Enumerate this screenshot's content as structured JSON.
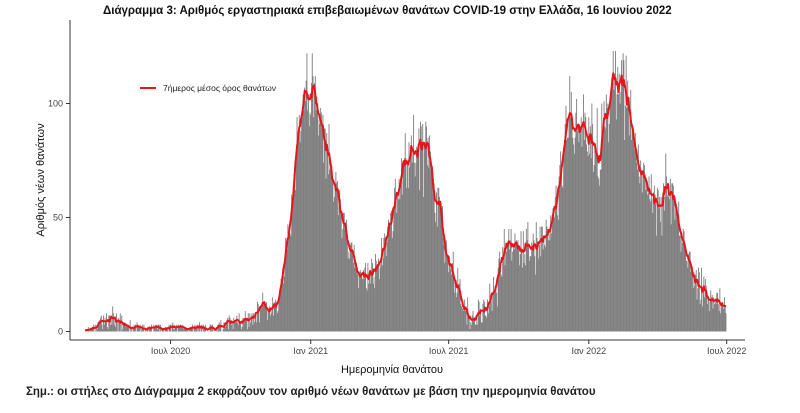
{
  "chart_data": {
    "type": "bar",
    "title": "Διάγραμμα 3: Αριθμός εργαστηριακά επιβεβαιωμένων θανάτων COVID-19 στην Ελλάδα, 16 Ιουνίου 2022",
    "xlabel": "Ημερομηνία θανάτου",
    "ylabel": "Αριθμός νέων θανάτων",
    "ylim": [
      0,
      135
    ],
    "yticks": [
      0,
      50,
      100
    ],
    "xlim": [
      "2020-02-20",
      "2022-07-25"
    ],
    "xticks": [
      {
        "date": "2020-07-01",
        "label": "Ιουλ 2020"
      },
      {
        "date": "2021-01-01",
        "label": "Ιαν 2021"
      },
      {
        "date": "2021-07-01",
        "label": "Ιουλ 2021"
      },
      {
        "date": "2022-01-01",
        "label": "Ιαν 2022"
      },
      {
        "date": "2022-07-01",
        "label": "Ιουλ 2022"
      }
    ],
    "grid": false,
    "legend_position": "top-left",
    "colors": {
      "bars": "#7f7f7f",
      "line": "#e8141c"
    },
    "series": [
      {
        "name": "daily_deaths",
        "kind": "bar",
        "start_date": "2020-03-11",
        "end_date": "2022-06-14",
        "daily_values": [
          0,
          1,
          0,
          0,
          2,
          1,
          0,
          1,
          1,
          1,
          2,
          3,
          0,
          3,
          0,
          2,
          1,
          3,
          3,
          5,
          6,
          7,
          3,
          1,
          7,
          3,
          6,
          4,
          8,
          2,
          1,
          7,
          7,
          3,
          7,
          3,
          11,
          8,
          3,
          6,
          2,
          8,
          5,
          0,
          6,
          5,
          8,
          0,
          7,
          1,
          4,
          3,
          4,
          3,
          2,
          3,
          3,
          2,
          0,
          5,
          0,
          2,
          0,
          1,
          3,
          1,
          3,
          0,
          4,
          3,
          2,
          2,
          3,
          0,
          1,
          3,
          1,
          3,
          0,
          1,
          0,
          1,
          2,
          0,
          2,
          2,
          2,
          3,
          0,
          0,
          3,
          2,
          2,
          3,
          2,
          1,
          3,
          3,
          0,
          3,
          0,
          1,
          1,
          1,
          0,
          2,
          2,
          1,
          1,
          0,
          3,
          1,
          3,
          0,
          3,
          4,
          1,
          1,
          2,
          2,
          3,
          0,
          3,
          2,
          2,
          3,
          2,
          2,
          3,
          1,
          2,
          1,
          2,
          1,
          1,
          1,
          0,
          1,
          2,
          2,
          1,
          3,
          0,
          2,
          3,
          1,
          1,
          3,
          0,
          3,
          4,
          0,
          2,
          3,
          0,
          3,
          1,
          2,
          3,
          0,
          0,
          1,
          0,
          0,
          3,
          3,
          2,
          3,
          0,
          2,
          0,
          0,
          2,
          0,
          1,
          3,
          4,
          3,
          5,
          0,
          0,
          1,
          4,
          3,
          2,
          4,
          5,
          6,
          1,
          7,
          6,
          4,
          3,
          4,
          1,
          6,
          5,
          5,
          4,
          7,
          4,
          3,
          8,
          4,
          4,
          1,
          2,
          6,
          5,
          5,
          9,
          6,
          5,
          1,
          8,
          2,
          8,
          4,
          7,
          8,
          3,
          8,
          4,
          8,
          8,
          4,
          13,
          12,
          9,
          4,
          11,
          11,
          12,
          17,
          13,
          12,
          12,
          11,
          13,
          5,
          9,
          10,
          11,
          7,
          8,
          11,
          15,
          7,
          11,
          13,
          14,
          13,
          8,
          9,
          13,
          16,
          16,
          23,
          24,
          26,
          21,
          24,
          32,
          41,
          34,
          36,
          47,
          44,
          42,
          43,
          42,
          60,
          53,
          62,
          69,
          67,
          62,
          78,
          94,
          87,
          85,
          95,
          83,
          88,
          95,
          98,
          104,
          97,
          107,
          101,
          110,
          122,
          97,
          104,
          90,
          96,
          95,
          109,
          122,
          112,
          94,
          109,
          112,
          97,
          103,
          100,
          86,
          93,
          91,
          98,
          96,
          90,
          95,
          74,
          89,
          89,
          67,
          87,
          82,
          69,
          91,
          71,
          75,
          72,
          71,
          66,
          57,
          59,
          65,
          70,
          65,
          66,
          51,
          59,
          62,
          58,
          51,
          41,
          45,
          52,
          52,
          45,
          47,
          49,
          42,
          32,
          35,
          32,
          38,
          39,
          39,
          34,
          30,
          38,
          28,
          29,
          30,
          28,
          25,
          19,
          25,
          27,
          26,
          24,
          23,
          27,
          23,
          28,
          30,
          19,
          18,
          30,
          21,
          26,
          21,
          26,
          32,
          30,
          21,
          24,
          19,
          34,
          31,
          28,
          28,
          32,
          23,
          28,
          32,
          41,
          29,
          32,
          41,
          43,
          36,
          33,
          39,
          46,
          49,
          44,
          47,
          52,
          53,
          41,
          44,
          54,
          63,
          67,
          59,
          52,
          60,
          58,
          67,
          58,
          66,
          76,
          60,
          73,
          75,
          76,
          87,
          76,
          63,
          75,
          63,
          83,
          72,
          81,
          86,
          74,
          79,
          95,
          74,
          68,
          74,
          81,
          80,
          82,
          89,
          62,
          92,
          90,
          83,
          91,
          59,
          82,
          82,
          92,
          90,
          73,
          85,
          72,
          86,
          79,
          71,
          72,
          64,
          67,
          65,
          52,
          48,
          61,
          46,
          63,
          63,
          59,
          54,
          53,
          51,
          55,
          41,
          38,
          30,
          37,
          40,
          34,
          32,
          26,
          33,
          30,
          27,
          25,
          30,
          35,
          24,
          17,
          20,
          15,
          17,
          28,
          18,
          21,
          23,
          12,
          11,
          10,
          12,
          9,
          14,
          9,
          11,
          3,
          15,
          8,
          7,
          1,
          4,
          3,
          7,
          9,
          5,
          6,
          3,
          3,
          7,
          3,
          14,
          13,
          7,
          10,
          4,
          4,
          12,
          14,
          13,
          7,
          7,
          6,
          14,
          8,
          11,
          21,
          15,
          13,
          9,
          17,
          24,
          18,
          20,
          19,
          17,
          11,
          28,
          32,
          35,
          29,
          25,
          24,
          37,
          31,
          45,
          29,
          39,
          35,
          38,
          38,
          45,
          36,
          40,
          45,
          31,
          35,
          38,
          36,
          43,
          38,
          40,
          38,
          40,
          37,
          29,
          34,
          44,
          36,
          28,
          44,
          30,
          34,
          29,
          45,
          40,
          48,
          37,
          31,
          33,
          33,
          39,
          38,
          43,
          40,
          33,
          25,
          48,
          41,
          36,
          32,
          38,
          46,
          33,
          46,
          46,
          36,
          40,
          38,
          37,
          49,
          46,
          43,
          40,
          43,
          40,
          51,
          43,
          50,
          54,
          51,
          50,
          59,
          64,
          55,
          51,
          49,
          68,
          73,
          79,
          70,
          64,
          63,
          81,
          84,
          91,
          99,
          84,
          85,
          85,
          95,
          112,
          94,
          105,
          94,
          85,
          82,
          78,
          85,
          96,
          102,
          88,
          90,
          83,
          89,
          87,
          94,
          81,
          90,
          104,
          84,
          96,
          94,
          82,
          79,
          77,
          94,
          78,
          90,
          76,
          100,
          91,
          70,
          73,
          82,
          81,
          80,
          98,
          68,
          67,
          64,
          71,
          71,
          100,
          85,
          86,
          101,
          90,
          89,
          104,
          98,
          100,
          83,
          91,
          102,
          105,
          111,
          112,
          123,
          106,
          113,
          123,
          93,
          104,
          116,
          104,
          113,
          100,
          105,
          119,
          108,
          122,
          119,
          84,
          99,
          121,
          98,
          110,
          100,
          86,
          97,
          106,
          84,
          91,
          88,
          83,
          80,
          87,
          81,
          74,
          71,
          82,
          68,
          65,
          75,
          71,
          61,
          69,
          74,
          73,
          69,
          62,
          66,
          60,
          61,
          68,
          58,
          57,
          69,
          58,
          52,
          61,
          64,
          60,
          56,
          42,
          63,
          62,
          54,
          59,
          48,
          59,
          42,
          61,
          65,
          53,
          59,
          78,
          68,
          60,
          59,
          63,
          58,
          67,
          47,
          65,
          65,
          64,
          60,
          49,
          56,
          56,
          50,
          51,
          57,
          42,
          42,
          35,
          43,
          39,
          45,
          44,
          36,
          37,
          31,
          31,
          28,
          34,
          35,
          35,
          26,
          29,
          26,
          19,
          26,
          20,
          25,
          27,
          14,
          19,
          28,
          26,
          12,
          14,
          28,
          11,
          18,
          24,
          15,
          23,
          20,
          16,
          12,
          14,
          9,
          13,
          18,
          15,
          16,
          10,
          15,
          12,
          13,
          12,
          17,
          17,
          12,
          9,
          19,
          8,
          12,
          11,
          12,
          10,
          15,
          11,
          8
        ]
      },
      {
        "name": "7ήμερος μέσος όρος θανάτων",
        "kind": "line",
        "note": "7-day centered moving average of daily_deaths"
      }
    ]
  },
  "note_text": "Σημ.: οι στήλες στο Διάγραμμα 2 εκφράζουν τον αριθμό νέων θανάτων με βάση την ημερομηνία θανάτου"
}
